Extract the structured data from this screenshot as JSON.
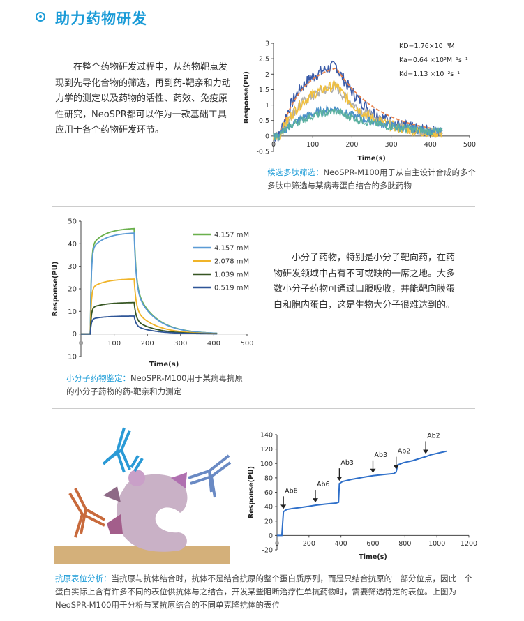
{
  "header": {
    "title": "助力药物研发"
  },
  "section1": {
    "paragraph": "在整个药物研发过程中，从药物靶点发现到先导化合物的筛选，再到药-靶亲和力动力学的测定以及药物的活性、药效、免疫原性研究，NeoSPR都可以作为一款基础工具应用于各个药物研发环节。",
    "caption_highlight": "候选多肽筛选：",
    "caption_text": "NeoSPR-M100用于从自主设计合成的多个多肽中筛选与某病毒蛋白结合的多肽药物"
  },
  "section2": {
    "paragraph": "小分子药物，特别是小分子靶向药，在药物研发领域中占有不可或缺的一席之地。大多数小分子药物可通过口服吸收，并能靶向膜蛋白和胞内蛋白，这是生物大分子很难达到的。",
    "caption_highlight": "小分子药物鉴定：",
    "caption_text": "NeoSPR-M100用于某病毒抗原的小分子药物的药-靶亲和力测定"
  },
  "section3": {
    "caption_highlight": "抗原表位分析：",
    "caption_text": "当抗原与抗体结合时，抗体不是结合抗原的整个蛋白质序列，而是只结合抗原的一部分位点，因此一个蛋白实际上含有许多不同的表位供抗体与之结合，开发某些阻断治疗性单抗药物时，需要筛选特定的表位。上图为NeoSPR-M100用于分析与某抗原结合的不同单克隆抗体的表位"
  },
  "chart_data": [
    {
      "type": "line",
      "xlabel": "Time(s)",
      "ylabel": "Response(PU)",
      "xlim": [
        0,
        500
      ],
      "ylim": [
        -0.5,
        3
      ],
      "xticks": [
        0,
        100,
        200,
        300,
        400,
        500
      ],
      "yticks": [
        -0.5,
        0,
        0.5,
        1,
        1.5,
        2,
        2.5,
        3
      ],
      "annotations": [
        "KD=1.76×10⁻⁴M",
        "Ka=0.64 ×10²M⁻¹s⁻¹",
        "Kd=1.13 ×10⁻²s⁻¹"
      ],
      "series": [
        {
          "color": "#3a5ba8",
          "plateau": 2.45,
          "kon": 0.018,
          "koff": 0.0113
        },
        {
          "color": "#e8804a",
          "plateau": 2.4,
          "kon": 0.017,
          "koff": 0.009,
          "dashed": true
        },
        {
          "color": "#b0b0b0",
          "plateau": 1.75,
          "kon": 0.016,
          "koff": 0.01
        },
        {
          "color": "#f0c040",
          "plateau": 1.85,
          "kon": 0.015,
          "koff": 0.0113
        },
        {
          "color": "#4a90c8",
          "plateau": 1.0,
          "kon": 0.015,
          "koff": 0.007
        },
        {
          "color": "#5bb0a0",
          "plateau": 0.9,
          "kon": 0.015,
          "koff": 0.007
        }
      ]
    },
    {
      "type": "line",
      "xlabel": "Time(s)",
      "ylabel": "Response(PU)",
      "xlim": [
        0,
        500
      ],
      "ylim": [
        -10,
        50
      ],
      "xticks": [
        0,
        100,
        200,
        300,
        400,
        500
      ],
      "yticks": [
        -10,
        0,
        10,
        20,
        30,
        40,
        50
      ],
      "legend_position": "right",
      "series": [
        {
          "name": "4.157 mM",
          "color": "#6ab04c",
          "plateau": 47
        },
        {
          "name": "4.157 mM",
          "color": "#5b9bd5",
          "plateau": 45
        },
        {
          "name": "2.078 mM",
          "color": "#f0b429",
          "plateau": 24.5
        },
        {
          "name": "1.039 mM",
          "color": "#375623",
          "plateau": 14
        },
        {
          "name": "0.519 mM",
          "color": "#2e5597",
          "plateau": 8
        }
      ]
    },
    {
      "type": "line",
      "xlabel": "Time(s)",
      "ylabel": "Response(PU)",
      "xlim": [
        0,
        1200
      ],
      "ylim": [
        -20,
        140
      ],
      "xticks": [
        0,
        200,
        400,
        600,
        800,
        1000,
        1200
      ],
      "yticks": [
        -20,
        0,
        20,
        40,
        60,
        80,
        100,
        120,
        140
      ],
      "color": "#2e6fc9",
      "points": [
        [
          0,
          0
        ],
        [
          30,
          0
        ],
        [
          40,
          33
        ],
        [
          60,
          36
        ],
        [
          100,
          37.5
        ],
        [
          150,
          39
        ],
        [
          200,
          40.5
        ],
        [
          240,
          42
        ],
        [
          300,
          43.5
        ],
        [
          370,
          45
        ],
        [
          385,
          46
        ],
        [
          390,
          72
        ],
        [
          410,
          75
        ],
        [
          470,
          78
        ],
        [
          530,
          80.5
        ],
        [
          600,
          83
        ],
        [
          660,
          84.5
        ],
        [
          730,
          86
        ],
        [
          745,
          88
        ],
        [
          755,
          98
        ],
        [
          790,
          101
        ],
        [
          850,
          104
        ],
        [
          900,
          107.5
        ],
        [
          930,
          109.5
        ],
        [
          960,
          112
        ],
        [
          1000,
          114
        ],
        [
          1060,
          117
        ]
      ],
      "markers": [
        {
          "label": "Ab6",
          "x": 40,
          "y": 33
        },
        {
          "label": "Ab6",
          "x": 240,
          "y": 42
        },
        {
          "label": "Ab3",
          "x": 390,
          "y": 72
        },
        {
          "label": "Ab3",
          "x": 600,
          "y": 83
        },
        {
          "label": "Ab2",
          "x": 745,
          "y": 88
        },
        {
          "label": "Ab2",
          "x": 930,
          "y": 109.5
        }
      ]
    }
  ]
}
